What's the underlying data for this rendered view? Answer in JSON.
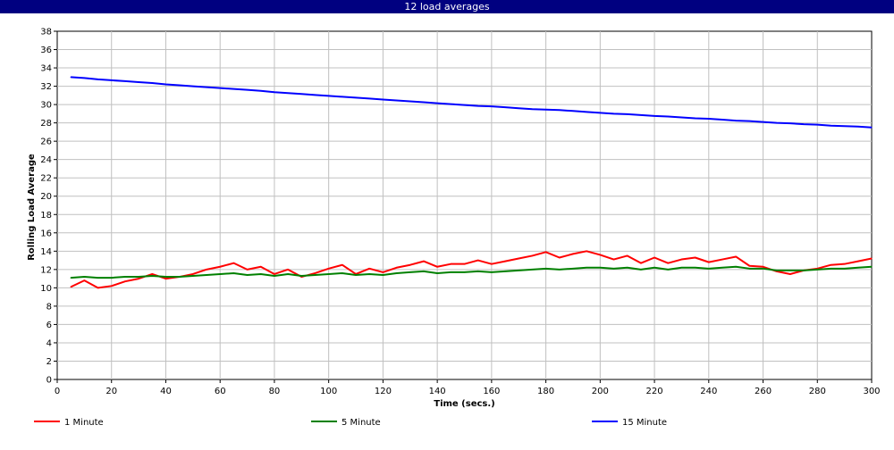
{
  "chart_data": {
    "type": "line",
    "title": "12 load averages",
    "xlabel": "Time (secs.)",
    "ylabel": "Rolling Load Average",
    "xlim": [
      0,
      300
    ],
    "ylim": [
      0,
      38
    ],
    "xticks": [
      0,
      20,
      40,
      60,
      80,
      100,
      120,
      140,
      160,
      180,
      200,
      220,
      240,
      260,
      280,
      300
    ],
    "yticks": [
      0,
      2,
      4,
      6,
      8,
      10,
      12,
      14,
      16,
      18,
      20,
      22,
      24,
      26,
      28,
      30,
      32,
      34,
      36,
      38
    ],
    "grid": true,
    "legend_position": "bottom",
    "x": [
      5,
      10,
      15,
      20,
      25,
      30,
      35,
      40,
      45,
      50,
      55,
      60,
      65,
      70,
      75,
      80,
      85,
      90,
      95,
      100,
      105,
      110,
      115,
      120,
      125,
      130,
      135,
      140,
      145,
      150,
      155,
      160,
      165,
      170,
      175,
      180,
      185,
      190,
      195,
      200,
      205,
      210,
      215,
      220,
      225,
      230,
      235,
      240,
      245,
      250,
      255,
      260,
      265,
      270,
      275,
      280,
      285,
      290,
      295,
      300
    ],
    "series": [
      {
        "name": "1 Minute",
        "color": "#ff0000",
        "values": [
          10.1,
          10.8,
          10.0,
          10.2,
          10.7,
          11.0,
          11.5,
          11.0,
          11.2,
          11.5,
          12.0,
          12.3,
          12.7,
          12.0,
          12.3,
          11.5,
          12.0,
          11.2,
          11.6,
          12.1,
          12.5,
          11.5,
          12.1,
          11.7,
          12.2,
          12.5,
          12.9,
          12.3,
          12.6,
          12.6,
          13.0,
          12.6,
          12.9,
          13.2,
          13.5,
          13.9,
          13.3,
          13.7,
          14.0,
          13.6,
          13.1,
          13.5,
          12.7,
          13.3,
          12.7,
          13.1,
          13.3,
          12.8,
          13.1,
          13.4,
          12.4,
          12.3,
          11.8,
          11.5,
          11.9,
          12.1,
          12.5,
          12.6,
          12.9,
          13.2
        ]
      },
      {
        "name": "5 Minute",
        "color": "#008000",
        "values": [
          11.1,
          11.2,
          11.1,
          11.1,
          11.2,
          11.2,
          11.3,
          11.2,
          11.2,
          11.3,
          11.4,
          11.5,
          11.6,
          11.4,
          11.5,
          11.3,
          11.5,
          11.3,
          11.4,
          11.5,
          11.6,
          11.4,
          11.5,
          11.4,
          11.6,
          11.7,
          11.8,
          11.6,
          11.7,
          11.7,
          11.8,
          11.7,
          11.8,
          11.9,
          12.0,
          12.1,
          12.0,
          12.1,
          12.2,
          12.2,
          12.1,
          12.2,
          12.0,
          12.2,
          12.0,
          12.2,
          12.2,
          12.1,
          12.2,
          12.3,
          12.1,
          12.1,
          11.9,
          11.9,
          11.9,
          12.0,
          12.1,
          12.1,
          12.2,
          12.3
        ]
      },
      {
        "name": "15 Minute",
        "color": "#0000ff",
        "values": [
          33.0,
          32.9,
          32.75,
          32.65,
          32.55,
          32.45,
          32.35,
          32.2,
          32.1,
          32.0,
          31.9,
          31.8,
          31.7,
          31.6,
          31.5,
          31.35,
          31.25,
          31.15,
          31.05,
          30.95,
          30.85,
          30.75,
          30.65,
          30.55,
          30.45,
          30.35,
          30.25,
          30.15,
          30.05,
          29.95,
          29.85,
          29.8,
          29.7,
          29.6,
          29.5,
          29.45,
          29.4,
          29.3,
          29.2,
          29.1,
          29.0,
          28.95,
          28.85,
          28.75,
          28.7,
          28.6,
          28.5,
          28.45,
          28.35,
          28.25,
          28.2,
          28.1,
          28.0,
          27.95,
          27.85,
          27.8,
          27.7,
          27.65,
          27.6,
          27.5
        ]
      }
    ]
  }
}
